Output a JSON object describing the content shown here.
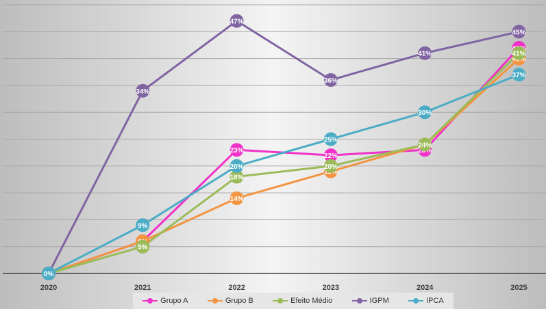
{
  "chart_data": {
    "type": "line",
    "title": "",
    "xlabel": "",
    "ylabel": "",
    "categories": [
      "2020",
      "2021",
      "2022",
      "2023",
      "2024",
      "2025"
    ],
    "ylim": [
      0,
      50
    ],
    "grid": true,
    "legend_position": "bottom",
    "series": [
      {
        "name": "Grupo A",
        "color": "#f032c8",
        "values": [
          0,
          6,
          23,
          22,
          23,
          42
        ],
        "labels": [
          "0%",
          "6%",
          "23%",
          "22%",
          "23%",
          "42%"
        ]
      },
      {
        "name": "Grupo B",
        "color": "#f39440",
        "values": [
          0,
          6,
          14,
          19,
          24,
          40
        ],
        "labels": [
          "0%",
          "6%",
          "14%",
          "19%",
          "24%",
          "40%"
        ]
      },
      {
        "name": "Efeito Médio",
        "color": "#9bbb59",
        "values": [
          0,
          5,
          18,
          20,
          24,
          41
        ],
        "labels": [
          "0%",
          "5%",
          "18%",
          "20%",
          "24%",
          "41%"
        ]
      },
      {
        "name": "IGPM",
        "color": "#8064a2",
        "values": [
          0,
          34,
          47,
          36,
          41,
          45
        ],
        "labels": [
          "0%",
          "34%",
          "47%",
          "36%",
          "41%",
          "45%"
        ]
      },
      {
        "name": "IPCA",
        "color": "#4bacc6",
        "values": [
          0,
          9,
          20,
          25,
          30,
          37
        ],
        "labels": [
          "0%",
          "9%",
          "20%",
          "25%",
          "30%",
          "37%"
        ]
      }
    ]
  }
}
